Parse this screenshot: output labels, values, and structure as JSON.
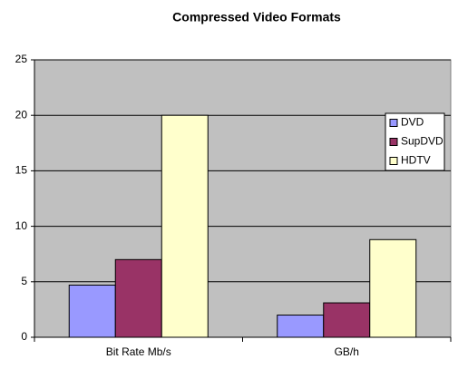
{
  "chart_data": {
    "type": "bar",
    "title": "Compressed Video Formats",
    "categories": [
      "Bit Rate Mb/s",
      "GB/h"
    ],
    "series": [
      {
        "name": "DVD",
        "color": "#9999ff",
        "values": [
          4.7,
          2.0
        ]
      },
      {
        "name": "SupDVD",
        "color": "#993366",
        "values": [
          7.0,
          3.1
        ]
      },
      {
        "name": "HDTV",
        "color": "#ffffcc",
        "values": [
          20,
          8.8
        ]
      }
    ],
    "ylim": [
      0,
      25
    ],
    "yticks": [
      0,
      5,
      10,
      15,
      20,
      25
    ],
    "grid": true,
    "legend": "right"
  }
}
